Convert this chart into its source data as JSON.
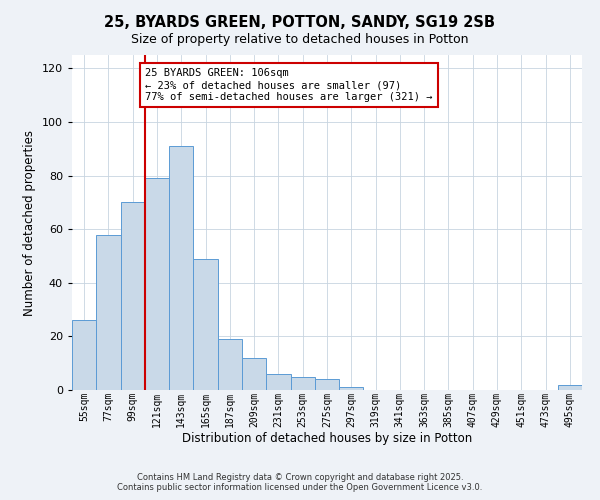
{
  "title": "25, BYARDS GREEN, POTTON, SANDY, SG19 2SB",
  "subtitle": "Size of property relative to detached houses in Potton",
  "xlabel": "Distribution of detached houses by size in Potton",
  "ylabel": "Number of detached properties",
  "bin_labels": [
    "55sqm",
    "77sqm",
    "99sqm",
    "121sqm",
    "143sqm",
    "165sqm",
    "187sqm",
    "209sqm",
    "231sqm",
    "253sqm",
    "275sqm",
    "297sqm",
    "319sqm",
    "341sqm",
    "363sqm",
    "385sqm",
    "407sqm",
    "429sqm",
    "451sqm",
    "473sqm",
    "495sqm"
  ],
  "bar_values": [
    26,
    58,
    70,
    79,
    91,
    49,
    19,
    12,
    6,
    5,
    4,
    1,
    0,
    0,
    0,
    0,
    0,
    0,
    0,
    0,
    2
  ],
  "bar_color": "#c9d9e8",
  "bar_edge_color": "#5b9bd5",
  "ylim": [
    0,
    125
  ],
  "yticks": [
    0,
    20,
    40,
    60,
    80,
    100,
    120
  ],
  "vline_x_index": 2.5,
  "vline_color": "#cc0000",
  "annotation_text": "25 BYARDS GREEN: 106sqm\n← 23% of detached houses are smaller (97)\n77% of semi-detached houses are larger (321) →",
  "annotation_box_color": "#ffffff",
  "annotation_box_edge_color": "#cc0000",
  "footer_line1": "Contains HM Land Registry data © Crown copyright and database right 2025.",
  "footer_line2": "Contains public sector information licensed under the Open Government Licence v3.0.",
  "background_color": "#eef2f7",
  "plot_background_color": "#ffffff",
  "grid_color": "#c8d4e0"
}
